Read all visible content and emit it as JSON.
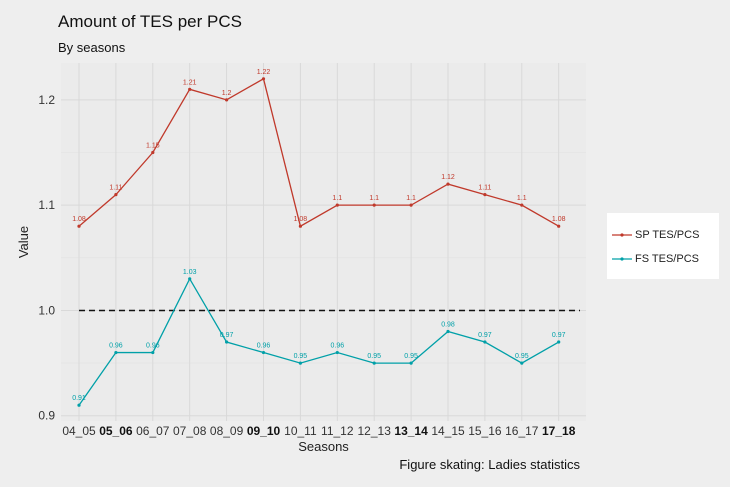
{
  "chart_data": {
    "type": "line",
    "title": "Amount of TES per PCS",
    "subtitle": "By seasons",
    "caption": "Figure skating: Ladies statistics",
    "xlabel": "Seasons",
    "ylabel": "Value",
    "ylim": [
      0.895,
      1.235
    ],
    "yticks": [
      0.9,
      1.0,
      1.1,
      1.2
    ],
    "ytick_labels": [
      "0.9",
      "1.0",
      "1.1",
      "1.2"
    ],
    "bold_categories": [
      "05_06",
      "09_10",
      "13_14",
      "17_18"
    ],
    "categories": [
      "04_05",
      "05_06",
      "06_07",
      "07_08",
      "08_09",
      "09_10",
      "10_11",
      "11_12",
      "12_13",
      "13_14",
      "14_15",
      "15_16",
      "16_17",
      "17_18"
    ],
    "reference_line": 1.0,
    "grid": true,
    "legend_position": "right",
    "series": [
      {
        "name": "SP TES/PCS",
        "color": "#c0392b",
        "values": [
          1.08,
          1.11,
          1.15,
          1.21,
          1.2,
          1.22,
          1.08,
          1.1,
          1.1,
          1.1,
          1.12,
          1.11,
          1.1,
          1.08
        ],
        "labels": [
          "1.08",
          "1.11",
          "1.15",
          "1.21",
          "1.2",
          "1.22",
          "1.08",
          "1.1",
          "1.1",
          "1.1",
          "1.12",
          "1.11",
          "1.1",
          "1.08"
        ]
      },
      {
        "name": "FS TES/PCS",
        "color": "#00a0a8",
        "values": [
          0.91,
          0.96,
          0.96,
          1.03,
          0.97,
          0.96,
          0.95,
          0.96,
          0.95,
          0.95,
          0.98,
          0.97,
          0.95,
          0.97
        ],
        "labels": [
          "0.91",
          "0.96",
          "0.96",
          "1.03",
          "0.97",
          "0.96",
          "0.95",
          "0.96",
          "0.95",
          "0.95",
          "0.98",
          "0.97",
          "0.95",
          "0.97"
        ]
      }
    ]
  }
}
